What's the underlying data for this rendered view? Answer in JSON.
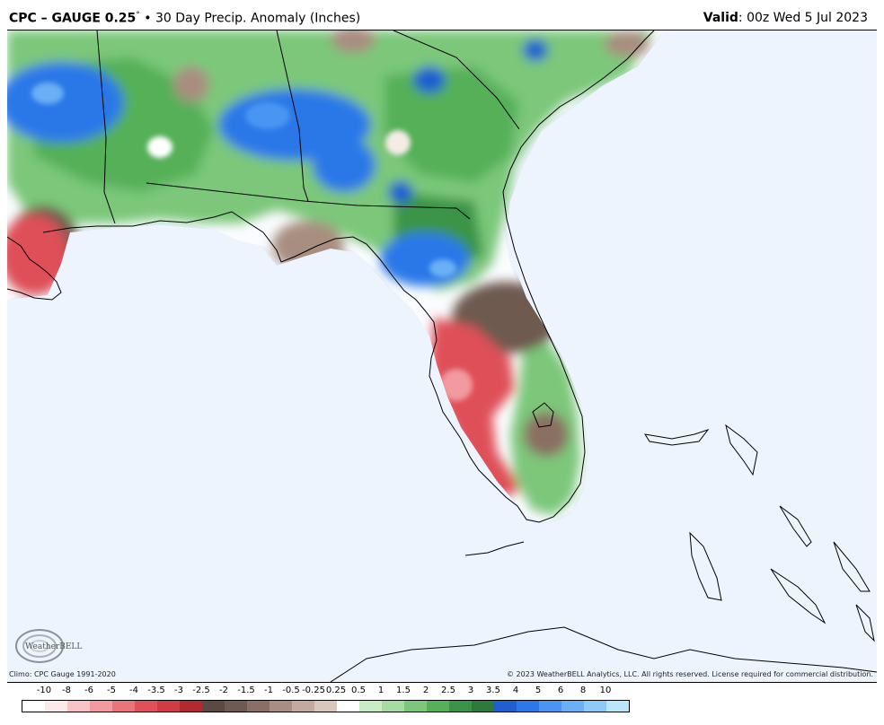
{
  "header": {
    "product": "CPC – GAUGE 0.25",
    "degree": "°",
    "separator": "•",
    "subtitle": "30 Day Precip. Anomaly (Inches)",
    "valid_label": "Valid",
    "valid_value": ": 00z Wed 5 Jul 2023"
  },
  "footer": {
    "climo": "Climo: CPC Gauge 1991-2020",
    "copyright": "© 2023 WeatherBELL Analytics, LLC. All rights reserved. License required for commercial distribution."
  },
  "logo": {
    "text": "WeatherBELL",
    "icon": "swirl-logo-icon"
  },
  "scale": {
    "labels": [
      "-10",
      "-8",
      "-6",
      "-5",
      "-4",
      "-3.5",
      "-3",
      "-2.5",
      "-2",
      "-1.5",
      "-1",
      "-0.5",
      "-0.25",
      "0.25",
      "0.5",
      "1",
      "1.5",
      "2",
      "2.5",
      "3",
      "3.5",
      "4",
      "5",
      "6",
      "8",
      "10"
    ],
    "colors": [
      "#fde8ea",
      "#f9c3c6",
      "#f19a9f",
      "#e9757a",
      "#df5058",
      "#d03c44",
      "#b22a30",
      "#5a4a42",
      "#6e5a50",
      "#8a7064",
      "#a88e80",
      "#c3aa9c",
      "#d9c7bb",
      "#ffffff",
      "#c9ecc5",
      "#a5dca0",
      "#7cc77a",
      "#55b058",
      "#3a9447",
      "#2f7a3a",
      "#1f5fd0",
      "#2b78e8",
      "#4a95f2",
      "#6bb0f6",
      "#8ecaf8",
      "#b8e6fb"
    ]
  },
  "map": {
    "water_color": "#eef4fd",
    "land_color": "#ffffff",
    "outline_color": "#000000",
    "region": "Southeast US / Florida"
  }
}
